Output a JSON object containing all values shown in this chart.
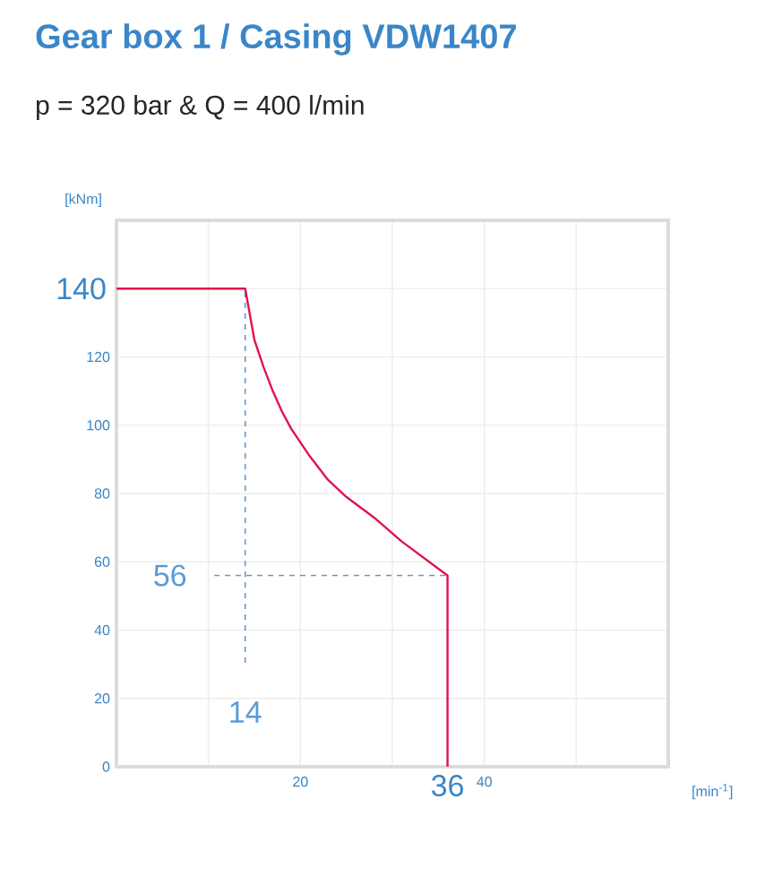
{
  "chart_data": {
    "type": "line",
    "title": "Gear box 1 / Casing VDW1407",
    "subtitle": "p = 320 bar & Q = 400 l/min",
    "xlabel": "[min$^{-1}$]",
    "ylabel": "[kNm]",
    "annotations": [
      {
        "text": "140",
        "x": 0,
        "y": 140
      },
      {
        "text": "36",
        "x": 36,
        "y": 0
      }
    ],
    "series": [
      {
        "color": "#e0144c",
        "x": [
          0,
          14,
          15,
          16,
          17,
          18,
          19,
          21,
          23,
          25,
          28,
          31,
          36,
          36
        ],
        "values": [
          140,
          140,
          125,
          117,
          110,
          104,
          99,
          91,
          84,
          79,
          73,
          66,
          56,
          0
        ]
      }
    ],
    "xlim": [
      0,
      60
    ],
    "ylim": [
      0,
      160
    ],
    "xticks": [
      {
        "value": 10,
        "label": null
      },
      20,
      {
        "value": 30,
        "label": null
      },
      40,
      {
        "value": 50,
        "label": null
      }
    ],
    "yticks": [
      0,
      20,
      40,
      60,
      80,
      100,
      120,
      {
        "value": 140,
        "label": null
      }
    ],
    "ref_lines": [
      {
        "axis": "x",
        "value": 14,
        "label": "14",
        "color": "#5b9bd5",
        "line_style": "dashed"
      },
      {
        "axis": "y",
        "value": 56,
        "label": "56",
        "color": "#5b9bd5",
        "line_style": "dashed"
      }
    ],
    "grid": true,
    "marker": "none",
    "line_style": "solid"
  }
}
